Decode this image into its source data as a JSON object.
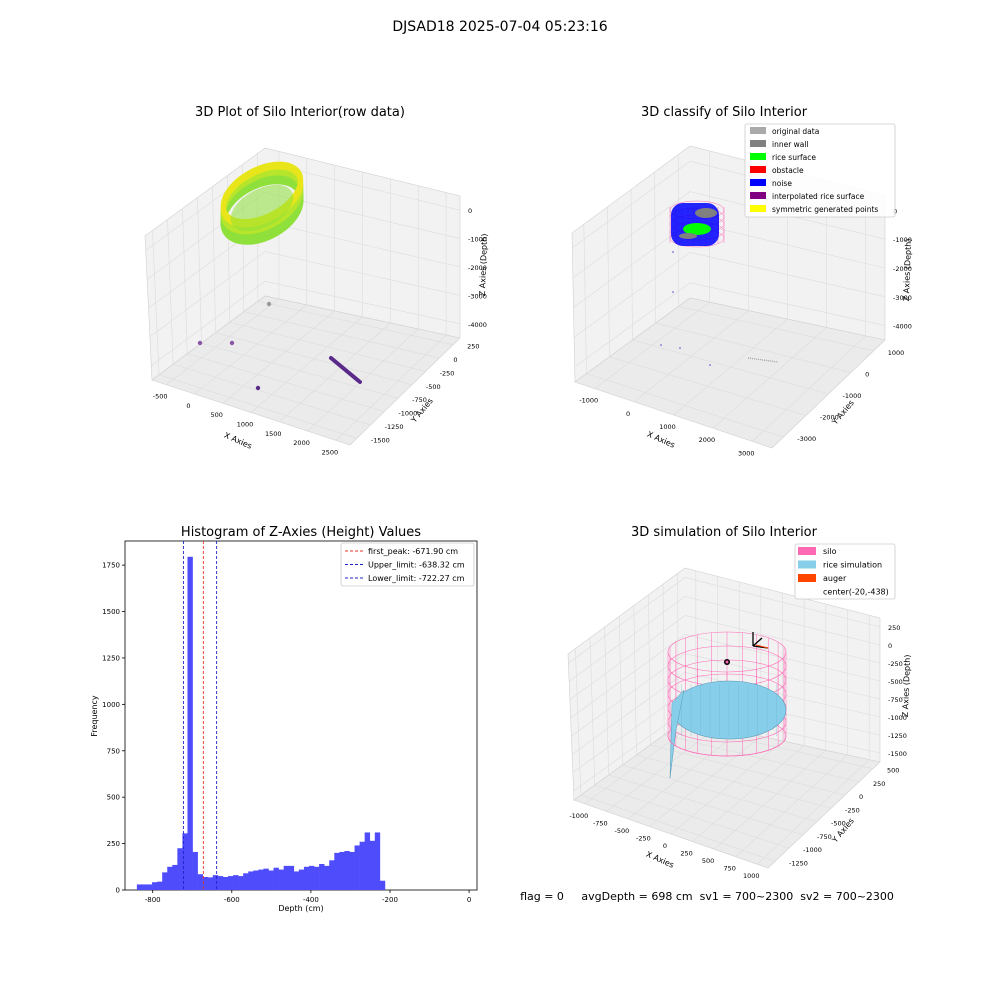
{
  "suptitle": "DJSAD18 2025-07-04 05:23:16",
  "status_line": "flag = 0     avgDepth = 698 cm  sv1 = 700~2300  sv2 = 700~2300",
  "colors": {
    "hist_bar": "#4f4cfc",
    "first_peak": "#e8362b",
    "limits": "#2020c8",
    "silo": "#ff69b4",
    "rice_simulation": "#87ceeb",
    "auger": "#ff4500",
    "raw_yellow": "#e8e61a",
    "raw_green": "#8fe03a",
    "raw_purple": "#5a2a8a",
    "class_grey": "#aaaaaa",
    "class_inner_wall": "#808080",
    "class_rice": "#00ff00",
    "class_obstacle": "#ff0000",
    "class_noise": "#0000ff",
    "class_interp": "#800080",
    "class_sym": "#ffff00"
  },
  "chart_data": [
    {
      "type": "scatter",
      "subtype": "3d",
      "title": "3D Plot of Silo Interior(row data)",
      "xlabel": "X Axies",
      "ylabel": "Y Axies",
      "zlabel": "Z Axies (Depth)",
      "x_ticks": [
        "-500",
        "0",
        "500",
        "1000",
        "1500",
        "2000",
        "2500"
      ],
      "y_ticks": [
        "250",
        "0",
        "-250",
        "-500",
        "-750",
        "-1000",
        "-1250",
        "-1500"
      ],
      "z_ticks": [
        "0",
        "-1000",
        "-2000",
        "-3000",
        "-4000"
      ],
      "grid": true
    },
    {
      "type": "scatter",
      "subtype": "3d",
      "title": "3D classify of Silo Interior",
      "xlabel": "X Axies",
      "ylabel": "Y Axies",
      "zlabel": "Z Axies (Depth)",
      "x_ticks": [
        "-1000",
        "0",
        "1000",
        "2000",
        "3000"
      ],
      "y_ticks": [
        "1000",
        "0",
        "-1000",
        "-2000",
        "-3000"
      ],
      "z_ticks": [
        "0",
        "-1000",
        "-2000",
        "-3000",
        "-4000"
      ],
      "legend": [
        "original data",
        "inner wall",
        "rice surface",
        "obstacle",
        "noise",
        "interpolated rice surface",
        "symmetric generated points"
      ],
      "legend_position": "top-right",
      "grid": true
    },
    {
      "type": "bar",
      "subtype": "histogram",
      "title": "Histogram of Z-Axies (Height) Values",
      "xlabel": "Depth (cm)",
      "ylabel": "Frequency",
      "xlim": [
        -870,
        20
      ],
      "ylim": [
        0,
        1880
      ],
      "x_ticks": [
        "-800",
        "-600",
        "-400",
        "-200",
        "0"
      ],
      "y_ticks": [
        "0",
        "250",
        "500",
        "750",
        "1000",
        "1250",
        "1500",
        "1750"
      ],
      "bin_edges_start": -840,
      "bin_width": 12.8,
      "values": [
        30,
        30,
        30,
        42,
        45,
        95,
        125,
        135,
        225,
        305,
        1795,
        205,
        85,
        70,
        68,
        80,
        75,
        70,
        75,
        80,
        75,
        90,
        100,
        105,
        110,
        115,
        105,
        120,
        110,
        130,
        130,
        100,
        110,
        125,
        130,
        125,
        140,
        130,
        160,
        200,
        205,
        210,
        205,
        240,
        260,
        310,
        265,
        310,
        50
      ],
      "lines": [
        {
          "name": "first_peak: -671.90 cm",
          "x": -671.9,
          "style": "dashed"
        },
        {
          "name": "Upper_limit: -638.32 cm",
          "x": -638.32,
          "style": "dashed"
        },
        {
          "name": "Lower_limit: -722.27 cm",
          "x": -722.27,
          "style": "dashed"
        }
      ],
      "legend_position": "top-right",
      "grid": false
    },
    {
      "type": "scatter",
      "subtype": "3d-surface",
      "title": "3D simulation of Silo Interior",
      "xlabel": "X Axies",
      "ylabel": "Y Axies",
      "zlabel": "Z Axies (Depth)",
      "x_ticks": [
        "-1000",
        "-750",
        "-500",
        "-250",
        "0",
        "250",
        "500",
        "750",
        "1000"
      ],
      "y_ticks": [
        "500",
        "250",
        "0",
        "-250",
        "-500",
        "-750",
        "-1000",
        "-1250"
      ],
      "z_ticks": [
        "250",
        "0",
        "-250",
        "-500",
        "-750",
        "-1000",
        "-1250",
        "-1500"
      ],
      "legend": [
        "silo",
        "rice simulation",
        "auger",
        "center(-20,-438)"
      ],
      "legend_position": "top-right",
      "grid": true
    }
  ]
}
